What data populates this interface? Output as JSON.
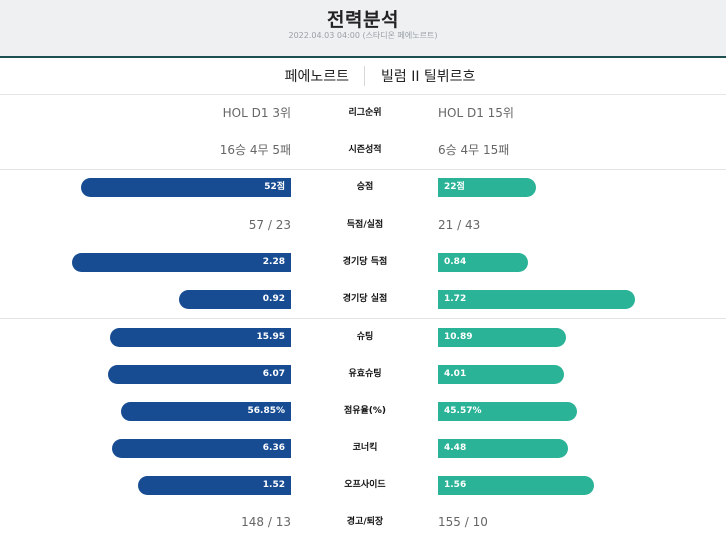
{
  "header": {
    "title": "전력분석",
    "meta": "2022.04.03 04:00 (스타디온 페에노르트)"
  },
  "teams": {
    "home": "페에노르트",
    "away": "빌럼 II 틸뷔르흐"
  },
  "colors": {
    "home": "#174c92",
    "away": "#2ab397",
    "header_bg": "#eef0f2",
    "header_rule": "#1d4f50"
  },
  "text_rows": {
    "league_rank": {
      "label": "리그순위",
      "home": "HOL D1 3위",
      "away": "HOL D1 15위"
    },
    "season_record": {
      "label": "시즌성적",
      "home": "16승 4무 5패",
      "away": "6승 4무 15패"
    },
    "goals_for_against": {
      "label": "득점/실점",
      "home": "57 / 23",
      "away": "21 / 43"
    },
    "cards": {
      "label": "경고/퇴장",
      "home": "148 / 13",
      "away": "155 / 10"
    }
  },
  "bar_rows": {
    "points": {
      "label": "승점",
      "home": "52점",
      "away": "22점",
      "home_value": 52,
      "away_value": 22
    },
    "goals_per_game": {
      "label": "경기당 득점",
      "home": "2.28",
      "away": "0.84",
      "home_value": 2.28,
      "away_value": 0.84
    },
    "conceded_per_game": {
      "label": "경기당 실점",
      "home": "0.92",
      "away": "1.72",
      "home_value": 0.92,
      "away_value": 1.72
    },
    "shots": {
      "label": "슈팅",
      "home": "15.95",
      "away": "10.89",
      "home_value": 15.95,
      "away_value": 10.89
    },
    "shots_on_target": {
      "label": "유효슈팅",
      "home": "6.07",
      "away": "4.01",
      "home_value": 6.07,
      "away_value": 4.01
    },
    "possession": {
      "label": "점유율(%)",
      "home": "56.85%",
      "away": "45.57%",
      "home_value": 56.85,
      "away_value": 45.57
    },
    "corners": {
      "label": "코너킥",
      "home": "6.36",
      "away": "4.48",
      "home_value": 6.36,
      "away_value": 4.48
    },
    "offsides": {
      "label": "오프사이드",
      "home": "1.52",
      "away": "1.56",
      "home_value": 1.52,
      "away_value": 1.56
    }
  }
}
